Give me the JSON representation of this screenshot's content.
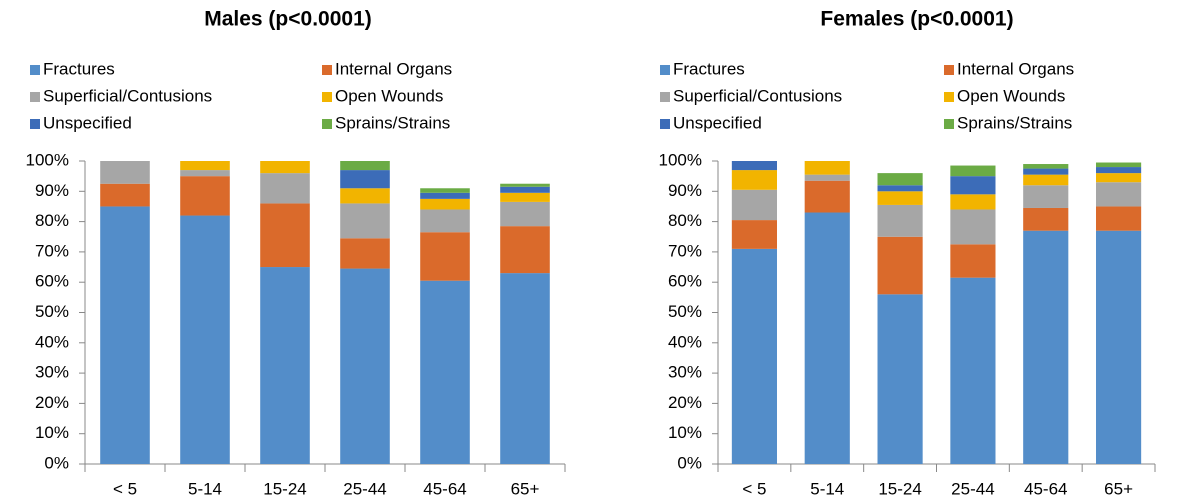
{
  "chart_data": [
    {
      "type": "stacked_bar",
      "title": "Males (p<0.0001)",
      "categories": [
        "< 5",
        "5-14",
        "15-24",
        "25-44",
        "45-64",
        "65+"
      ],
      "series": [
        {
          "name": "Fractures",
          "color": "#538dc9",
          "values": [
            85,
            82,
            65,
            64.5,
            60.5,
            63
          ]
        },
        {
          "name": "Internal Organs",
          "color": "#da6a2b",
          "values": [
            7.5,
            13,
            21,
            10,
            16,
            15.5
          ]
        },
        {
          "name": "Superficial/Contusions",
          "color": "#a6a6a6",
          "values": [
            7.5,
            2,
            10,
            11.5,
            7.5,
            8
          ]
        },
        {
          "name": "Open Wounds",
          "color": "#f2b400",
          "values": [
            0,
            3,
            4,
            5,
            3.5,
            3
          ]
        },
        {
          "name": "Unspecified",
          "color": "#3c6cb8",
          "values": [
            0,
            0,
            0,
            6,
            2,
            2
          ]
        },
        {
          "name": "Sprains/Strains",
          "color": "#6bab45",
          "values": [
            0,
            0,
            0,
            3,
            1.5,
            1
          ]
        }
      ],
      "ylim": [
        0,
        100
      ],
      "yticks": [
        {
          "value": 0,
          "label": "0%"
        },
        {
          "value": 10,
          "label": "10%"
        },
        {
          "value": 20,
          "label": "20%"
        },
        {
          "value": 30,
          "label": "30%"
        },
        {
          "value": 40,
          "label": "40%"
        },
        {
          "value": 50,
          "label": "50%"
        },
        {
          "value": 60,
          "label": "60%"
        },
        {
          "value": 70,
          "label": "70%"
        },
        {
          "value": 80,
          "label": "80%"
        },
        {
          "value": 90,
          "label": "90%"
        },
        {
          "value": 100,
          "label": "100%"
        }
      ]
    },
    {
      "type": "stacked_bar",
      "title": "Females (p<0.0001)",
      "categories": [
        "< 5",
        "5-14",
        "15-24",
        "25-44",
        "45-64",
        "65+"
      ],
      "series": [
        {
          "name": "Fractures",
          "color": "#538dc9",
          "values": [
            71,
            83,
            56,
            61.5,
            77,
            77
          ]
        },
        {
          "name": "Internal Organs",
          "color": "#da6a2b",
          "values": [
            9.5,
            10.5,
            19,
            11,
            7.5,
            8
          ]
        },
        {
          "name": "Superficial/Contusions",
          "color": "#a6a6a6",
          "values": [
            10,
            2,
            10.5,
            11.5,
            7.5,
            8
          ]
        },
        {
          "name": "Open Wounds",
          "color": "#f2b400",
          "values": [
            6.5,
            4.5,
            4.5,
            5,
            3.5,
            3
          ]
        },
        {
          "name": "Unspecified",
          "color": "#3c6cb8",
          "values": [
            3,
            0,
            2,
            6,
            2,
            2
          ]
        },
        {
          "name": "Sprains/Strains",
          "color": "#6bab45",
          "values": [
            0,
            0,
            4,
            3.5,
            1.5,
            1.5
          ]
        }
      ],
      "ylim": [
        0,
        100
      ],
      "yticks": [
        {
          "value": 0,
          "label": "0%"
        },
        {
          "value": 10,
          "label": "10%"
        },
        {
          "value": 20,
          "label": "20%"
        },
        {
          "value": 30,
          "label": "30%"
        },
        {
          "value": 40,
          "label": "40%"
        },
        {
          "value": 50,
          "label": "50%"
        },
        {
          "value": 60,
          "label": "60%"
        },
        {
          "value": 70,
          "label": "70%"
        },
        {
          "value": 80,
          "label": "80%"
        },
        {
          "value": 90,
          "label": "90%"
        },
        {
          "value": 100,
          "label": "100%"
        }
      ]
    }
  ]
}
